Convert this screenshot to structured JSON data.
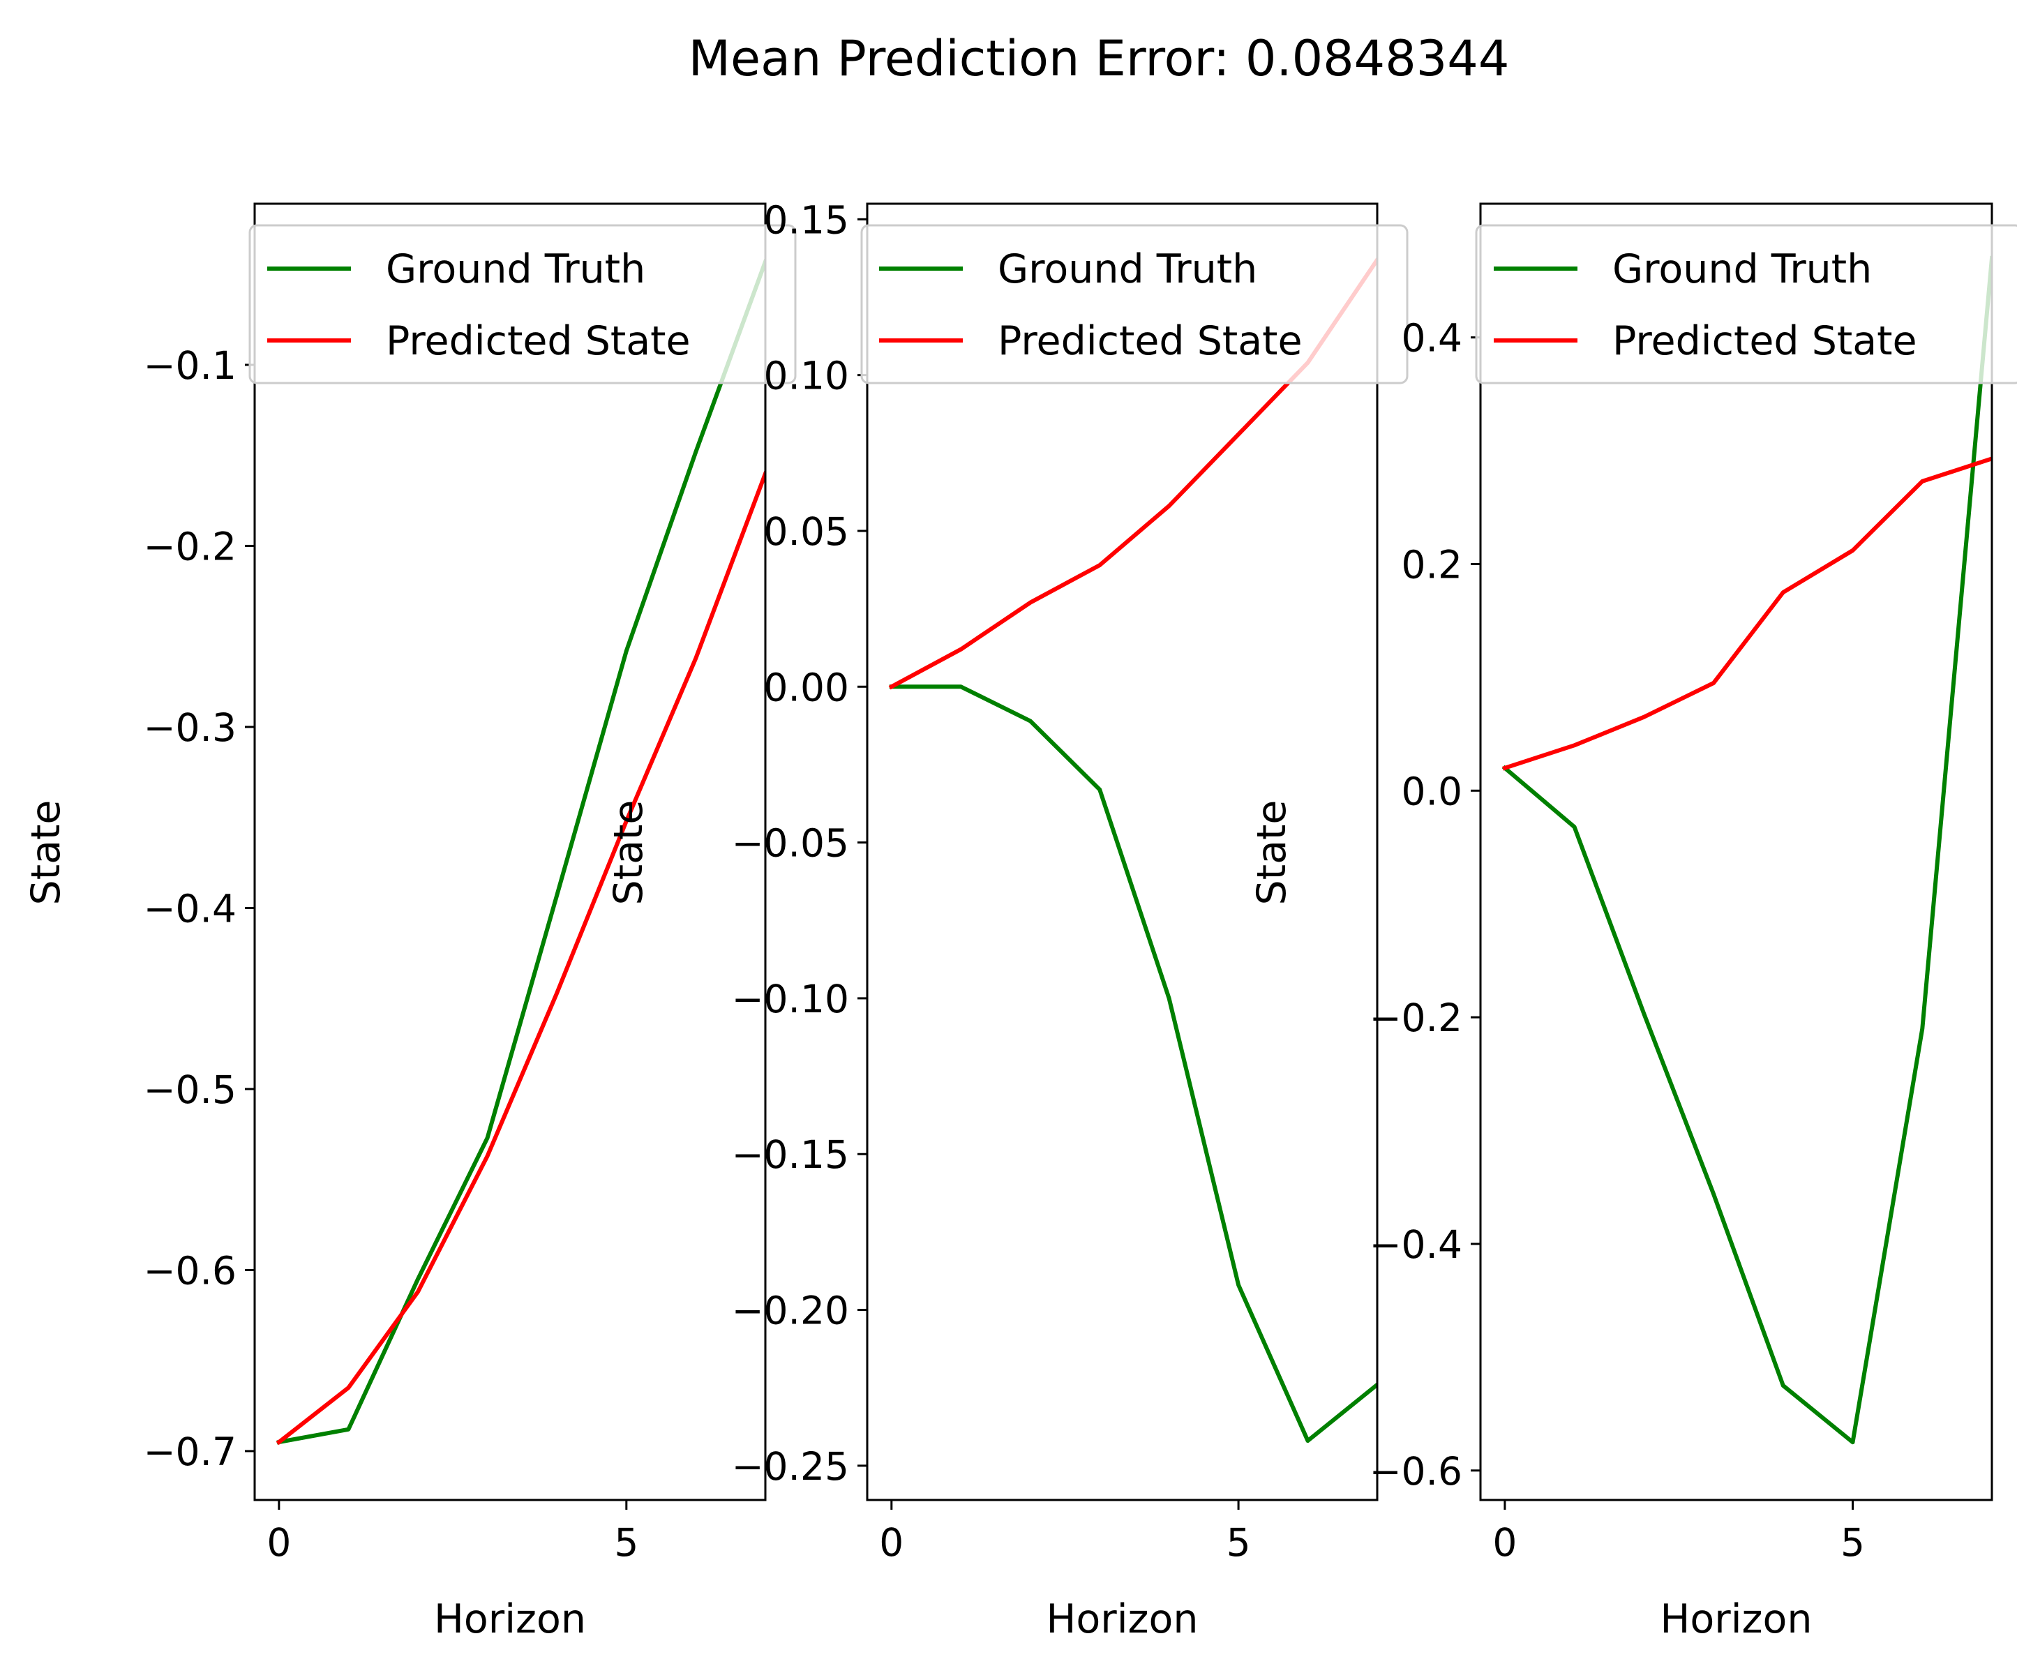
{
  "chart_data": {
    "title": "Mean Prediction Error: 0.0848344",
    "panels": [
      {
        "type": "line",
        "x": [
          0,
          1,
          2,
          3,
          4,
          5,
          6,
          7
        ],
        "series": [
          {
            "name": "Ground Truth",
            "color": "#008000",
            "values": [
              -0.695,
              -0.688,
              -0.605,
              -0.527,
              -0.393,
              -0.258,
              -0.148,
              -0.043
            ]
          },
          {
            "name": "Predicted State",
            "color": "#ff0000",
            "values": [
              -0.695,
              -0.665,
              -0.612,
              -0.537,
              -0.447,
              -0.352,
              -0.262,
              -0.16
            ]
          }
        ],
        "xlabel": "Horizon",
        "ylabel": "State",
        "xlim": [
          -0.35,
          7
        ],
        "ylim": [
          -0.727,
          -0.011
        ],
        "xticks": [
          0,
          5
        ],
        "xtick_labels": [
          "0",
          "5"
        ],
        "yticks": [
          -0.7,
          -0.6,
          -0.5,
          -0.4,
          -0.3,
          -0.2,
          -0.1
        ],
        "ytick_labels": [
          "−0.7",
          "−0.6",
          "−0.5",
          "−0.4",
          "−0.3",
          "−0.2",
          "−0.1"
        ],
        "legend": "top-right",
        "grid": false
      },
      {
        "type": "line",
        "x": [
          0,
          1,
          2,
          3,
          4,
          5,
          6,
          7
        ],
        "series": [
          {
            "name": "Ground Truth",
            "color": "#008000",
            "values": [
              0.0,
              0.0,
              -0.011,
              -0.033,
              -0.1,
              -0.192,
              -0.242,
              -0.224
            ]
          },
          {
            "name": "Predicted State",
            "color": "#ff0000",
            "values": [
              0.0,
              0.012,
              0.027,
              0.039,
              0.058,
              0.081,
              0.104,
              0.137
            ]
          }
        ],
        "xlabel": "Horizon",
        "ylabel": "State",
        "xlim": [
          -0.35,
          7
        ],
        "ylim": [
          -0.261,
          0.155
        ],
        "xticks": [
          0,
          5
        ],
        "xtick_labels": [
          "0",
          "5"
        ],
        "yticks": [
          -0.25,
          -0.2,
          -0.15,
          -0.1,
          -0.05,
          0.0,
          0.05,
          0.1,
          0.15
        ],
        "ytick_labels": [
          "−0.25",
          "−0.20",
          "−0.15",
          "−0.10",
          "−0.05",
          "0.00",
          "0.05",
          "0.10",
          "0.15"
        ],
        "legend": "top-right",
        "grid": false
      },
      {
        "type": "line",
        "x": [
          0,
          1,
          2,
          3,
          4,
          5,
          6,
          7
        ],
        "series": [
          {
            "name": "Ground Truth",
            "color": "#008000",
            "values": [
              0.02,
              -0.032,
              -0.197,
              -0.356,
              -0.525,
              -0.575,
              -0.21,
              0.47
            ]
          },
          {
            "name": "Predicted State",
            "color": "#ff0000",
            "values": [
              0.02,
              0.04,
              0.065,
              0.095,
              0.175,
              0.212,
              0.273,
              0.293
            ]
          }
        ],
        "xlabel": "Horizon",
        "ylabel": "State",
        "xlim": [
          -0.35,
          7
        ],
        "ylim": [
          -0.626,
          0.518
        ],
        "xticks": [
          0,
          5
        ],
        "xtick_labels": [
          "0",
          "5"
        ],
        "yticks": [
          -0.6,
          -0.4,
          -0.2,
          0.0,
          0.2,
          0.4
        ],
        "ytick_labels": [
          "−0.6",
          "−0.4",
          "−0.2",
          "0.0",
          "0.2",
          "0.4"
        ],
        "legend": "top-right",
        "grid": false
      }
    ]
  }
}
